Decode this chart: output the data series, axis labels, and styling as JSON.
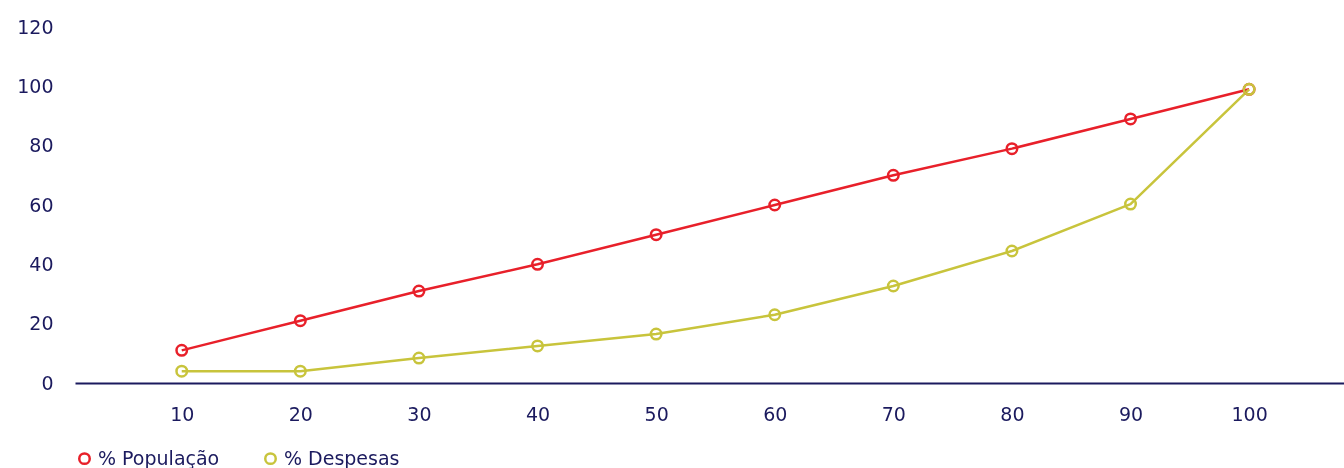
{
  "chart_data": {
    "type": "line",
    "x": [
      10,
      20,
      30,
      40,
      50,
      60,
      70,
      80,
      90,
      100
    ],
    "series": [
      {
        "name": "% População",
        "color": "#e8202a",
        "values": [
          11,
          21,
          31,
          40,
          50,
          60,
          70,
          79,
          89,
          99
        ]
      },
      {
        "name": "% Despesas",
        "color": "#c8c43c",
        "values": [
          4,
          4,
          8.4,
          12.5,
          16.5,
          23,
          32.7,
          44.5,
          60.3,
          99
        ]
      }
    ],
    "xlim": [
      1,
      108
    ],
    "xticks": [
      10,
      20,
      30,
      40,
      50,
      60,
      70,
      80,
      90,
      100
    ],
    "ylim": [
      0,
      120
    ],
    "yticks": [
      0,
      20,
      40,
      60,
      80,
      100,
      120
    ],
    "grid": false,
    "legend": "bottom",
    "marker": "circle",
    "line_style": "solid"
  }
}
